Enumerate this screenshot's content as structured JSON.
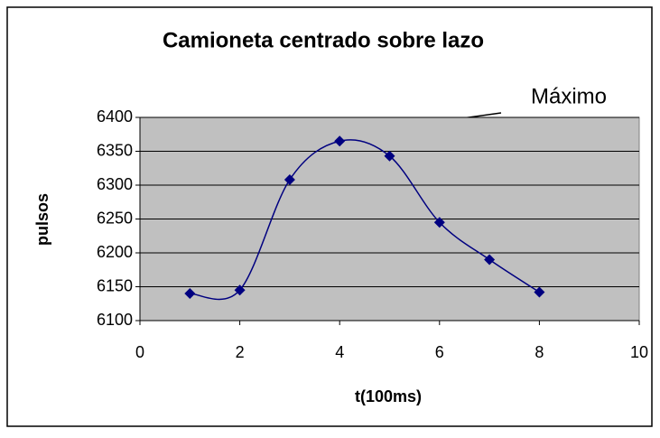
{
  "chart_data": {
    "type": "scatter",
    "title": "Camioneta centrado sobre lazo",
    "xlabel": "t(100ms)",
    "ylabel": "pulsos",
    "annotation": "Máximo",
    "series": [
      {
        "name": "pulsos",
        "color": "#000080",
        "x": [
          1,
          2,
          3,
          4,
          5,
          6,
          7,
          8
        ],
        "values": [
          6140,
          6145,
          6308,
          6365,
          6343,
          6245,
          6190,
          6142
        ]
      }
    ],
    "xlim": [
      0,
      10
    ],
    "xticks": [
      0,
      2,
      4,
      6,
      8,
      10
    ],
    "ylim": [
      6100,
      6400
    ],
    "yticks": [
      6100,
      6150,
      6200,
      6250,
      6300,
      6350,
      6400
    ],
    "grid": true,
    "smooth": true,
    "plot_background": "#c0c0c0"
  }
}
